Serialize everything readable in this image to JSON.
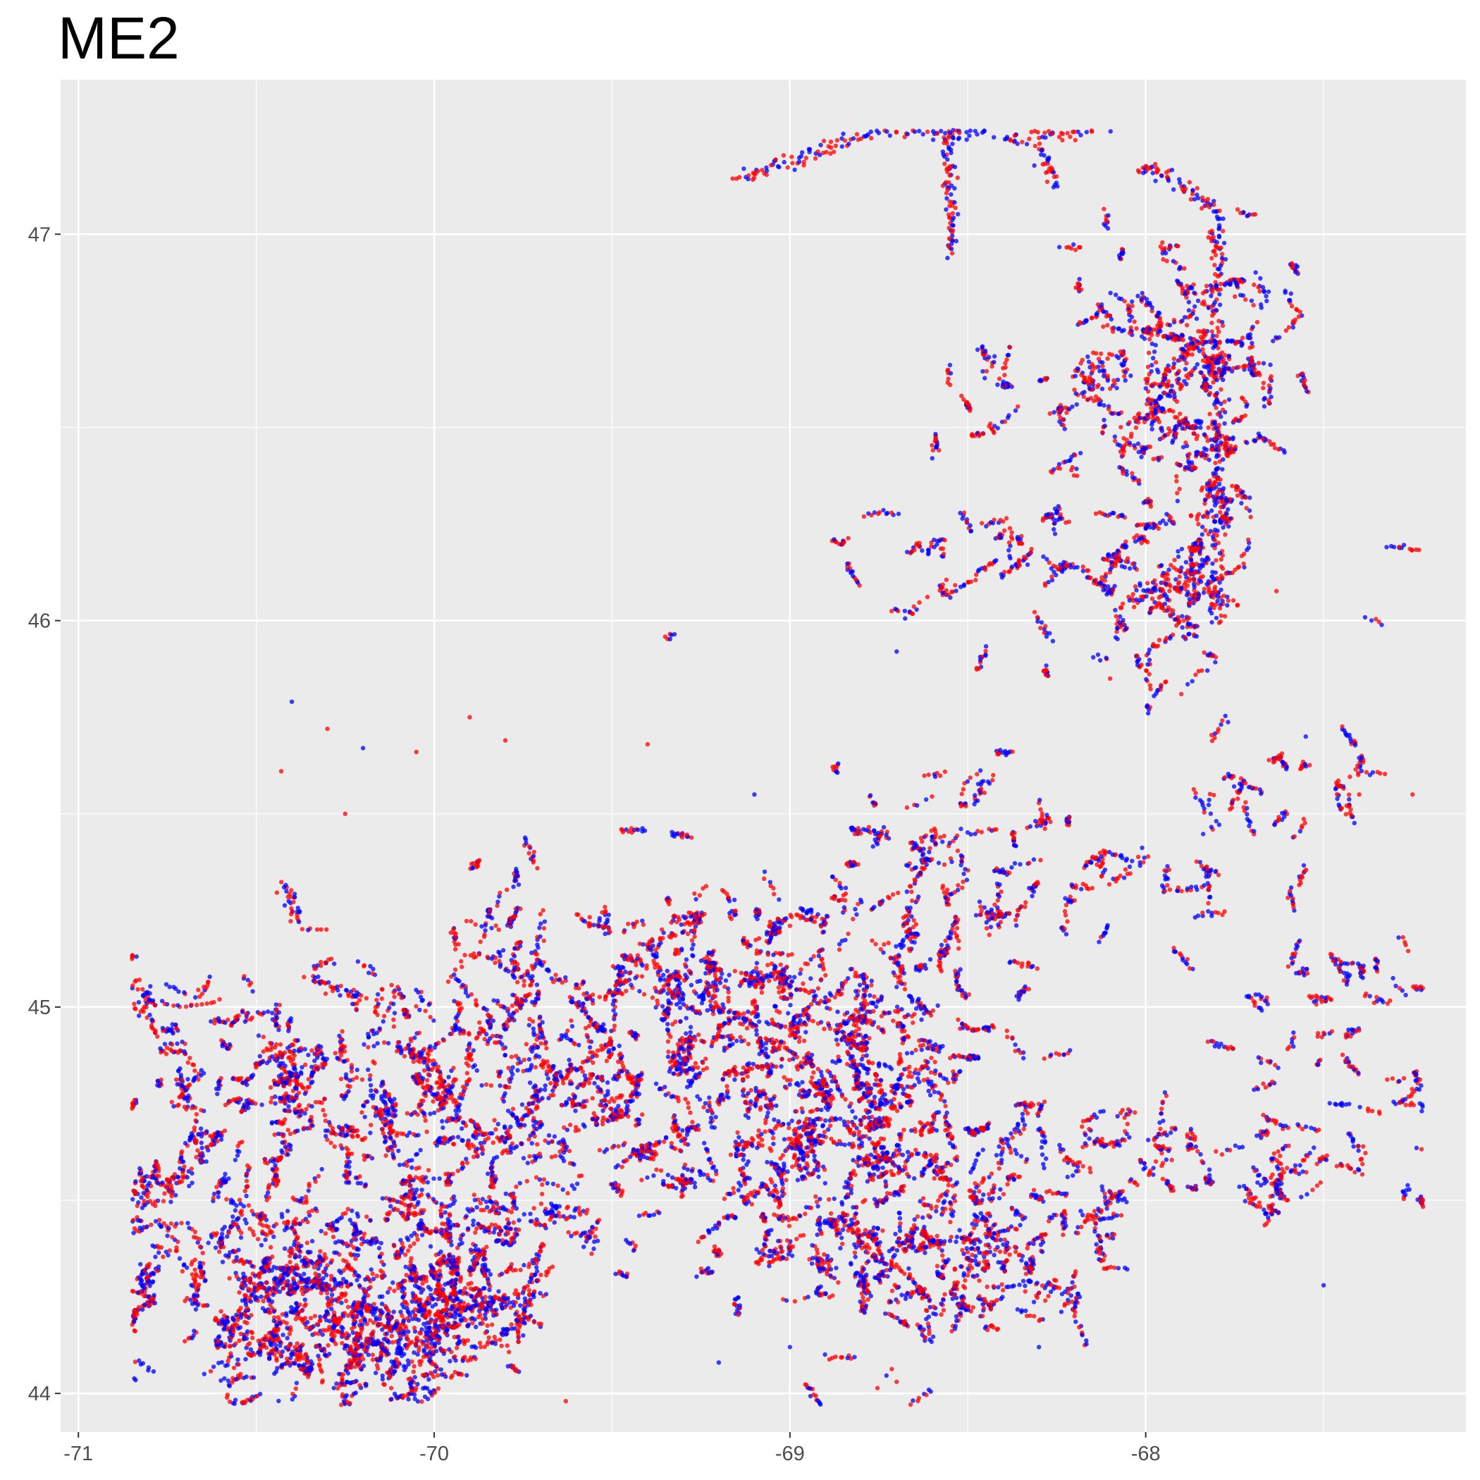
{
  "chart_data": {
    "type": "scatter",
    "title": "ME2",
    "xlabel": "",
    "ylabel": "",
    "xlim": [
      -71.05,
      -67.1
    ],
    "ylim": [
      43.9,
      47.4
    ],
    "x_ticks": [
      -71,
      -70,
      -69,
      -68
    ],
    "x_tick_labels": [
      "-71",
      "-70",
      "-69",
      "-68"
    ],
    "y_ticks": [
      44,
      45,
      46,
      47
    ],
    "y_tick_labels": [
      "44",
      "45",
      "46",
      "47"
    ],
    "grid": true,
    "legend": "none",
    "colors": {
      "panel_bg": "#ebebeb",
      "grid": "#ffffff",
      "series_a": "#ff0000",
      "series_b": "#0000ff"
    },
    "series": [
      {
        "color": "#ff0000"
      },
      {
        "color": "#0000ff"
      }
    ],
    "clusters": [
      {
        "lon": -70.4,
        "lat": 44.2,
        "sdx": 0.2,
        "sdy": 0.12,
        "n": 1200
      },
      {
        "lon": -70.1,
        "lat": 44.15,
        "sdx": 0.15,
        "sdy": 0.1,
        "n": 600
      },
      {
        "lon": -69.9,
        "lat": 44.2,
        "sdx": 0.12,
        "sdy": 0.06,
        "n": 300
      },
      {
        "lon": -70.6,
        "lat": 44.55,
        "sdx": 0.15,
        "sdy": 0.18,
        "n": 500
      },
      {
        "lon": -70.25,
        "lat": 44.6,
        "sdx": 0.18,
        "sdy": 0.2,
        "n": 700
      },
      {
        "lon": -69.8,
        "lat": 44.75,
        "sdx": 0.2,
        "sdy": 0.2,
        "n": 900
      },
      {
        "lon": -69.3,
        "lat": 44.8,
        "sdx": 0.3,
        "sdy": 0.25,
        "n": 1600
      },
      {
        "lon": -68.9,
        "lat": 44.75,
        "sdx": 0.25,
        "sdy": 0.25,
        "n": 1400
      },
      {
        "lon": -68.6,
        "lat": 44.55,
        "sdx": 0.15,
        "sdy": 0.2,
        "n": 600
      },
      {
        "lon": -68.3,
        "lat": 44.4,
        "sdx": 0.15,
        "sdy": 0.12,
        "n": 400
      },
      {
        "lon": -69.2,
        "lat": 45.1,
        "sdx": 0.25,
        "sdy": 0.12,
        "n": 500
      },
      {
        "lon": -69.85,
        "lat": 45.1,
        "sdx": 0.15,
        "sdy": 0.1,
        "n": 200
      },
      {
        "lon": -70.5,
        "lat": 44.85,
        "sdx": 0.12,
        "sdy": 0.08,
        "n": 250
      },
      {
        "lon": -70.75,
        "lat": 44.95,
        "sdx": 0.08,
        "sdy": 0.05,
        "n": 120
      },
      {
        "lon": -70.82,
        "lat": 44.3,
        "sdx": 0.04,
        "sdy": 0.2,
        "n": 200
      },
      {
        "lon": -68.4,
        "lat": 45.3,
        "sdx": 0.15,
        "sdy": 0.2,
        "n": 400
      },
      {
        "lon": -68.05,
        "lat": 45.35,
        "sdx": 0.2,
        "sdy": 0.1,
        "n": 200
      },
      {
        "lon": -68.3,
        "lat": 46.15,
        "sdx": 0.4,
        "sdy": 0.12,
        "n": 500
      },
      {
        "lon": -67.92,
        "lat": 46.1,
        "sdx": 0.1,
        "sdy": 0.12,
        "n": 400
      },
      {
        "lon": -67.9,
        "lat": 46.7,
        "sdx": 0.2,
        "sdy": 0.15,
        "n": 1000
      },
      {
        "lon": -67.85,
        "lat": 46.4,
        "sdx": 0.08,
        "sdy": 0.15,
        "n": 300
      },
      {
        "lon": -68.45,
        "lat": 46.6,
        "sdx": 0.08,
        "sdy": 0.08,
        "n": 100
      },
      {
        "lon": -67.8,
        "lat": 44.62,
        "sdx": 0.3,
        "sdy": 0.08,
        "n": 400
      },
      {
        "lon": -67.4,
        "lat": 44.9,
        "sdx": 0.15,
        "sdy": 0.2,
        "n": 400
      },
      {
        "lon": -67.65,
        "lat": 45.6,
        "sdx": 0.2,
        "sdy": 0.12,
        "n": 200
      },
      {
        "lon": -68.6,
        "lat": 44.25,
        "sdx": 0.08,
        "sdy": 0.1,
        "n": 200
      },
      {
        "lon": -68.8,
        "lat": 44.35,
        "sdx": 0.1,
        "sdy": 0.08,
        "n": 300
      },
      {
        "lon": -68.65,
        "lat": 45.1,
        "sdx": 0.12,
        "sdy": 0.25,
        "n": 300
      },
      {
        "lon": -70.28,
        "lat": 44.8,
        "sdx": 0.35,
        "sdy": 0.15,
        "n": 300
      },
      {
        "lon": -69.9,
        "lat": 44.45,
        "sdx": 0.15,
        "sdy": 0.15,
        "n": 400
      }
    ],
    "tracks": [
      {
        "from": [
          -69.15,
          47.14
        ],
        "to": [
          -68.75,
          47.27
        ],
        "n": 80
      },
      {
        "from": [
          -68.75,
          47.27
        ],
        "to": [
          -68.45,
          47.26
        ],
        "n": 60
      },
      {
        "from": [
          -68.55,
          47.28
        ],
        "to": [
          -68.55,
          46.95
        ],
        "n": 80
      },
      {
        "from": [
          -68.4,
          47.24
        ],
        "to": [
          -68.1,
          47.28
        ],
        "n": 60
      },
      {
        "from": [
          -68.0,
          47.18
        ],
        "to": [
          -67.8,
          47.07
        ],
        "n": 50
      },
      {
        "from": [
          -67.8,
          47.07
        ],
        "to": [
          -67.8,
          46.0
        ],
        "n": 200
      },
      {
        "from": [
          -70.05,
          44.2
        ],
        "to": [
          -69.72,
          44.25
        ],
        "n": 100
      },
      {
        "from": [
          -68.3,
          47.22
        ],
        "to": [
          -68.25,
          47.14
        ],
        "n": 30
      },
      {
        "from": [
          -70.42,
          45.32
        ],
        "to": [
          -70.38,
          45.22
        ],
        "n": 30
      },
      {
        "from": [
          -70.35,
          45.08
        ],
        "to": [
          -70.2,
          45.02
        ],
        "n": 40
      }
    ],
    "stray_points": [
      [
        -70.4,
        45.79
      ],
      [
        -70.43,
        45.61
      ],
      [
        -70.3,
        45.72
      ],
      [
        -70.2,
        45.67
      ],
      [
        -70.05,
        45.66
      ],
      [
        -69.9,
        45.75
      ],
      [
        -69.8,
        45.69
      ],
      [
        -69.4,
        45.68
      ],
      [
        -69.1,
        45.55
      ],
      [
        -69.0,
        45.21
      ],
      [
        -68.7,
        45.92
      ],
      [
        -68.6,
        46.42
      ],
      [
        -68.1,
        45.85
      ],
      [
        -67.9,
        45.81
      ],
      [
        -67.55,
        45.7
      ],
      [
        -67.4,
        45.55
      ],
      [
        -67.25,
        45.55
      ],
      [
        -69.63,
        43.98
      ],
      [
        -68.7,
        44.03
      ],
      [
        -69.2,
        44.08
      ],
      [
        -69.0,
        44.12
      ],
      [
        -68.3,
        44.12
      ],
      [
        -68.2,
        44.2
      ],
      [
        -67.5,
        44.28
      ],
      [
        -67.2,
        45.1
      ],
      [
        -69.75,
        44.15
      ],
      [
        -70.95,
        44.5
      ],
      [
        -70.25,
        45.5
      ]
    ]
  }
}
